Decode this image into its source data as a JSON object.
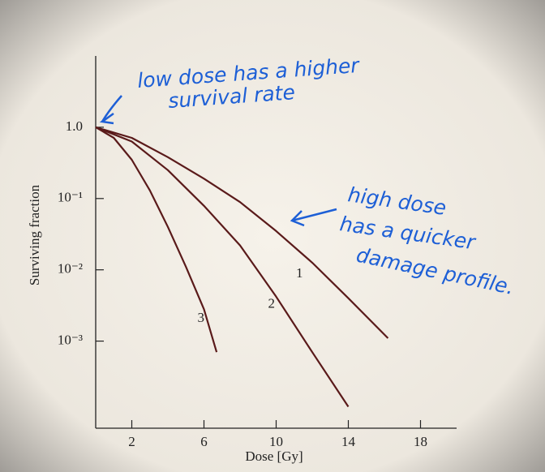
{
  "chart_data": {
    "type": "line",
    "y_label": "Surviving fraction",
    "x_label": "Dose [Gy]",
    "xlim": [
      0,
      20
    ],
    "xticks": [
      2,
      6,
      10,
      14,
      18
    ],
    "ylim": [
      6e-05,
      10
    ],
    "log_y": true,
    "yticks": [
      {
        "value": 1,
        "label": "1.0"
      },
      {
        "value": 0.1,
        "label": "10⁻¹"
      },
      {
        "value": 0.01,
        "label": "10⁻²"
      },
      {
        "value": 0.001,
        "label": "10⁻³"
      }
    ],
    "series": [
      {
        "name": "1",
        "color": "#5a1a1a",
        "x": [
          0,
          2,
          4,
          6,
          8,
          10,
          12,
          14,
          16.2
        ],
        "values": [
          1,
          0.71,
          0.38,
          0.19,
          0.089,
          0.035,
          0.0126,
          0.004,
          0.0011
        ]
      },
      {
        "name": "2",
        "color": "#5a1a1a",
        "x": [
          0,
          2,
          4,
          6,
          8,
          10,
          12,
          14
        ],
        "values": [
          1,
          0.63,
          0.25,
          0.079,
          0.022,
          0.0042,
          0.0007,
          0.00012
        ]
      },
      {
        "name": "3",
        "color": "#5a1a1a",
        "x": [
          0,
          1,
          2,
          3,
          4,
          5,
          6,
          6.7
        ],
        "values": [
          1,
          0.71,
          0.35,
          0.13,
          0.04,
          0.011,
          0.0028,
          0.0007
        ]
      }
    ],
    "annotations": [
      {
        "lines": [
          "low dose has a higher",
          "survival rate"
        ],
        "color": "#1d5fd6"
      },
      {
        "lines": [
          "high dose",
          "has a quicker",
          "damage profile."
        ],
        "color": "#1d5fd6"
      }
    ]
  }
}
